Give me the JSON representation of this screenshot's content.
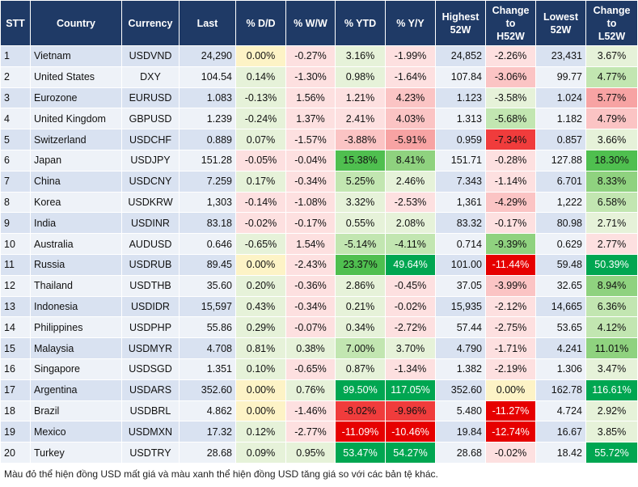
{
  "columns": [
    "STT",
    "Country",
    "Currency",
    "Last",
    "% D/D",
    "% W/W",
    "% YTD",
    "% Y/Y",
    "Highest\n52W",
    "Change\nto\nH52W",
    "Lowest\n52W",
    "Change\nto\nL52W"
  ],
  "rows": [
    {
      "stt": "1",
      "country": "Vietnam",
      "currency": "USDVND",
      "last": "24,290",
      "dd": "0.00%",
      "ww": "-0.27%",
      "ytd": "3.16%",
      "yy": "-1.99%",
      "h52": "24,852",
      "ch52": "-2.26%",
      "l52": "23,431",
      "cl52": "3.67%"
    },
    {
      "stt": "2",
      "country": "United States",
      "currency": "DXY",
      "last": "104.54",
      "dd": "0.14%",
      "ww": "-1.30%",
      "ytd": "0.98%",
      "yy": "-1.64%",
      "h52": "107.84",
      "ch52": "-3.06%",
      "l52": "99.77",
      "cl52": "4.77%"
    },
    {
      "stt": "3",
      "country": "Eurozone",
      "currency": "EURUSD",
      "last": "1.083",
      "dd": "-0.13%",
      "ww": "1.56%",
      "ytd": "1.21%",
      "yy": "4.23%",
      "h52": "1.123",
      "ch52": "-3.58%",
      "l52": "1.024",
      "cl52": "5.77%"
    },
    {
      "stt": "4",
      "country": "United Kingdom",
      "currency": "GBPUSD",
      "last": "1.239",
      "dd": "-0.24%",
      "ww": "1.37%",
      "ytd": "2.41%",
      "yy": "4.03%",
      "h52": "1.313",
      "ch52": "-5.68%",
      "l52": "1.182",
      "cl52": "4.79%"
    },
    {
      "stt": "5",
      "country": "Switzerland",
      "currency": "USDCHF",
      "last": "0.889",
      "dd": "0.07%",
      "ww": "-1.57%",
      "ytd": "-3.88%",
      "yy": "-5.91%",
      "h52": "0.959",
      "ch52": "-7.34%",
      "l52": "0.857",
      "cl52": "3.66%"
    },
    {
      "stt": "6",
      "country": "Japan",
      "currency": "USDJPY",
      "last": "151.28",
      "dd": "-0.05%",
      "ww": "-0.04%",
      "ytd": "15.38%",
      "yy": "8.41%",
      "h52": "151.71",
      "ch52": "-0.28%",
      "l52": "127.88",
      "cl52": "18.30%"
    },
    {
      "stt": "7",
      "country": "China",
      "currency": "USDCNY",
      "last": "7.259",
      "dd": "0.17%",
      "ww": "-0.34%",
      "ytd": "5.25%",
      "yy": "2.46%",
      "h52": "7.343",
      "ch52": "-1.14%",
      "l52": "6.701",
      "cl52": "8.33%"
    },
    {
      "stt": "8",
      "country": "Korea",
      "currency": "USDKRW",
      "last": "1,303",
      "dd": "-0.14%",
      "ww": "-1.08%",
      "ytd": "3.32%",
      "yy": "-2.53%",
      "h52": "1,361",
      "ch52": "-4.29%",
      "l52": "1,222",
      "cl52": "6.58%"
    },
    {
      "stt": "9",
      "country": "India",
      "currency": "USDINR",
      "last": "83.18",
      "dd": "-0.02%",
      "ww": "-0.17%",
      "ytd": "0.55%",
      "yy": "2.08%",
      "h52": "83.32",
      "ch52": "-0.17%",
      "l52": "80.98",
      "cl52": "2.71%"
    },
    {
      "stt": "10",
      "country": "Australia",
      "currency": "AUDUSD",
      "last": "0.646",
      "dd": "-0.65%",
      "ww": "1.54%",
      "ytd": "-5.14%",
      "yy": "-4.11%",
      "h52": "0.714",
      "ch52": "-9.39%",
      "l52": "0.629",
      "cl52": "2.77%"
    },
    {
      "stt": "11",
      "country": "Russia",
      "currency": "USDRUB",
      "last": "89.45",
      "dd": "0.00%",
      "ww": "-2.43%",
      "ytd": "23.37%",
      "yy": "49.64%",
      "h52": "101.00",
      "ch52": "-11.44%",
      "l52": "59.48",
      "cl52": "50.39%"
    },
    {
      "stt": "12",
      "country": "Thailand",
      "currency": "USDTHB",
      "last": "35.60",
      "dd": "0.20%",
      "ww": "-0.36%",
      "ytd": "2.86%",
      "yy": "-0.45%",
      "h52": "37.05",
      "ch52": "-3.99%",
      "l52": "32.65",
      "cl52": "8.94%"
    },
    {
      "stt": "13",
      "country": "Indonesia",
      "currency": "USDIDR",
      "last": "15,597",
      "dd": "0.43%",
      "ww": "-0.34%",
      "ytd": "0.21%",
      "yy": "-0.02%",
      "h52": "15,935",
      "ch52": "-2.12%",
      "l52": "14,665",
      "cl52": "6.36%"
    },
    {
      "stt": "14",
      "country": "Philippines",
      "currency": "USDPHP",
      "last": "55.86",
      "dd": "0.29%",
      "ww": "-0.07%",
      "ytd": "0.34%",
      "yy": "-2.72%",
      "h52": "57.44",
      "ch52": "-2.75%",
      "l52": "53.65",
      "cl52": "4.12%"
    },
    {
      "stt": "15",
      "country": "Malaysia",
      "currency": "USDMYR",
      "last": "4.708",
      "dd": "0.81%",
      "ww": "0.38%",
      "ytd": "7.00%",
      "yy": "3.70%",
      "h52": "4.790",
      "ch52": "-1.71%",
      "l52": "4.241",
      "cl52": "11.01%"
    },
    {
      "stt": "16",
      "country": "Singapore",
      "currency": "USDSGD",
      "last": "1.351",
      "dd": "0.10%",
      "ww": "-0.65%",
      "ytd": "0.87%",
      "yy": "-1.34%",
      "h52": "1.382",
      "ch52": "-2.19%",
      "l52": "1.306",
      "cl52": "3.47%"
    },
    {
      "stt": "17",
      "country": "Argentina",
      "currency": "USDARS",
      "last": "352.60",
      "dd": "0.00%",
      "ww": "0.76%",
      "ytd": "99.50%",
      "yy": "117.05%",
      "h52": "352.60",
      "ch52": "0.00%",
      "l52": "162.78",
      "cl52": "116.61%"
    },
    {
      "stt": "18",
      "country": "Brazil",
      "currency": "USDBRL",
      "last": "4.862",
      "dd": "0.00%",
      "ww": "-1.46%",
      "ytd": "-8.02%",
      "yy": "-9.96%",
      "h52": "5.480",
      "ch52": "-11.27%",
      "l52": "4.724",
      "cl52": "2.92%"
    },
    {
      "stt": "19",
      "country": "Mexico",
      "currency": "USDMXN",
      "last": "17.32",
      "dd": "0.12%",
      "ww": "-2.77%",
      "ytd": "-11.09%",
      "yy": "-10.46%",
      "h52": "19.84",
      "ch52": "-12.74%",
      "l52": "16.67",
      "cl52": "3.85%"
    },
    {
      "stt": "20",
      "country": "Turkey",
      "currency": "USDTRY",
      "last": "28.68",
      "dd": "0.09%",
      "ww": "0.95%",
      "ytd": "53.47%",
      "yy": "54.27%",
      "h52": "28.68",
      "ch52": "-0.02%",
      "l52": "18.42",
      "cl52": "55.72%"
    }
  ],
  "footnote": "Màu đỏ thể hiện đồng USD mất giá và màu xanh thể hiện đồng USD tăng giá so với các bản tệ khác."
}
